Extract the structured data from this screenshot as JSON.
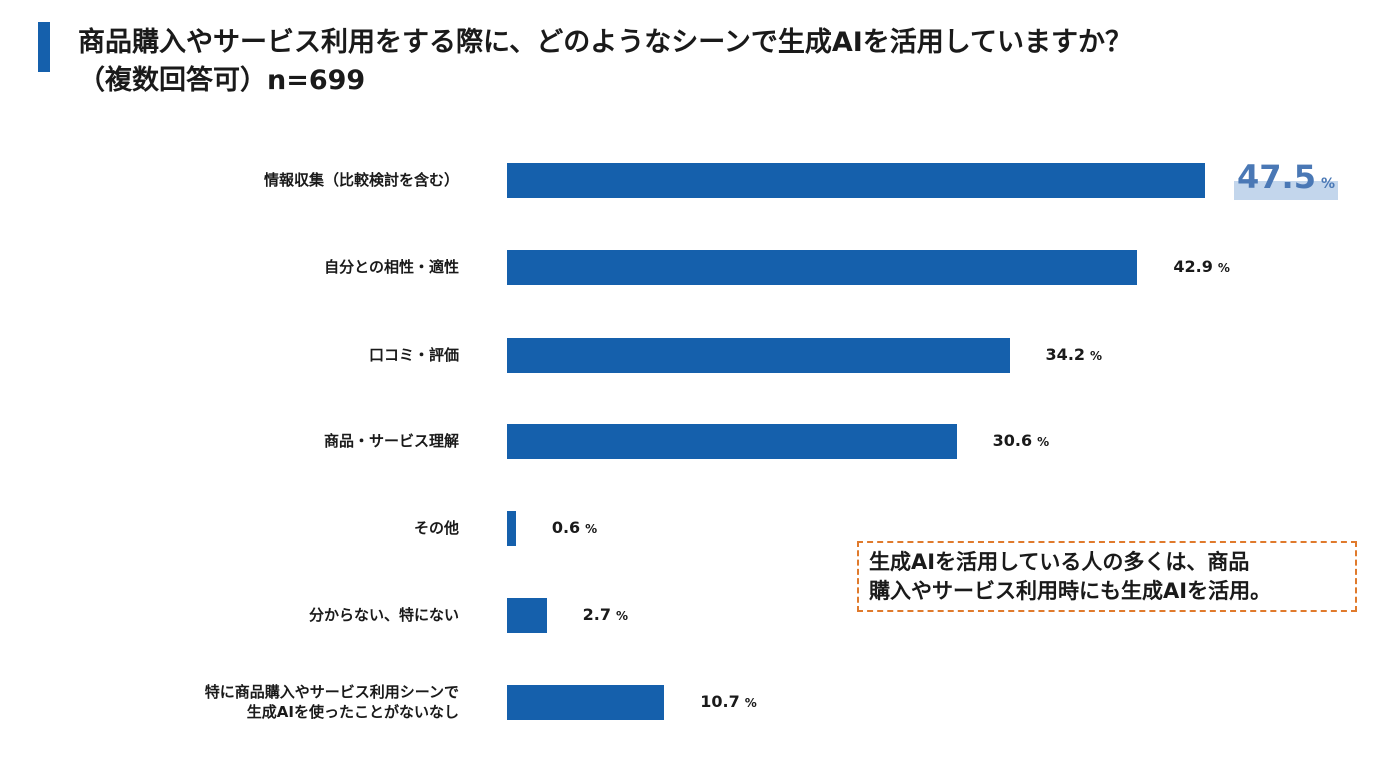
{
  "title": {
    "line1": "商品購入やサービス利用をする際に、どのようなシーンで生成AIを活用していますか？",
    "line2": "（複数回答可）n=699"
  },
  "chart_data": {
    "type": "bar",
    "orientation": "horizontal",
    "categories": [
      "情報収集（比較検討を含む）",
      "自分との相性・適性",
      "口コミ・評価",
      "商品・サービス理解",
      "その他",
      "分からない、特にない",
      "特に商品購入やサービス利用シーンで\n生成AIを使ったことがないなし"
    ],
    "values": [
      47.5,
      42.9,
      34.2,
      30.6,
      0.6,
      2.7,
      10.7
    ],
    "value_labels": [
      "47.5",
      "42.9",
      "34.2",
      "30.6",
      "0.6",
      "2.7",
      "10.7"
    ],
    "unit": "%",
    "highlight_index": 0,
    "xlim": [
      0,
      100
    ],
    "bar_color": "#1560ac",
    "highlight_color": "#4a78b5"
  },
  "callout": {
    "line1": "生成AIを活用している人の多くは、商品",
    "line2": "購入やサービス利用時にも生成AIを活用。",
    "border_color": "#e07a2c"
  }
}
